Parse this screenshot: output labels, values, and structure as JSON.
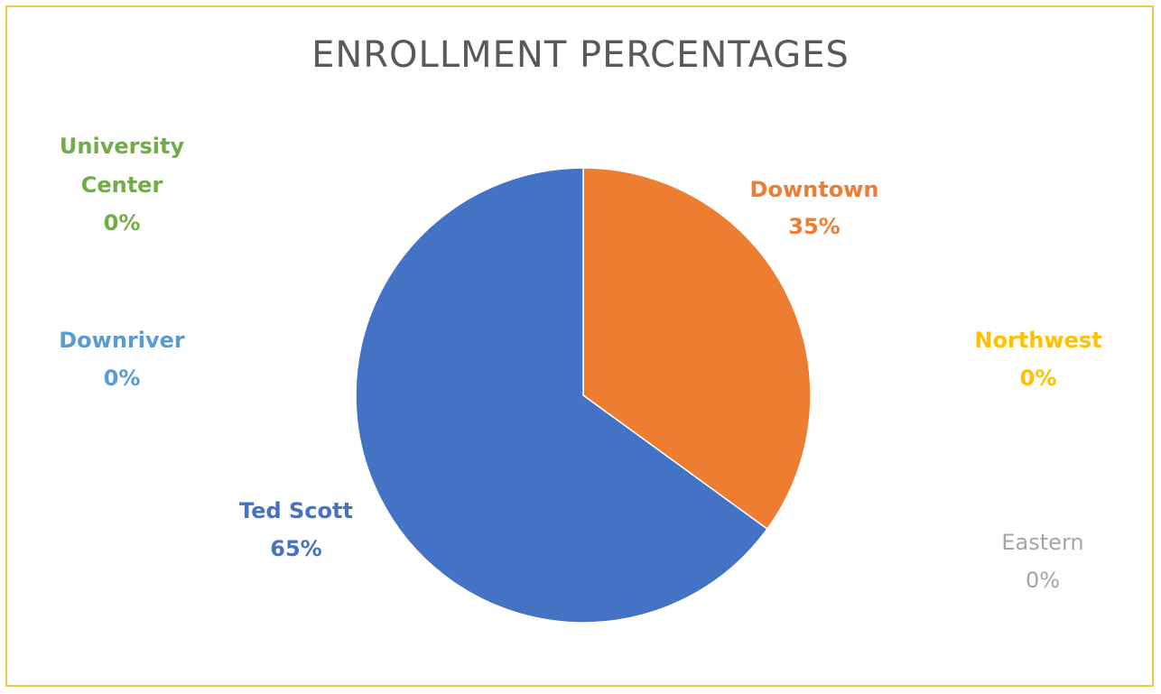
{
  "chart_data": {
    "type": "pie",
    "title": "ENROLLMENT PERCENTAGES",
    "slices": [
      {
        "name": "Downtown",
        "value": 35,
        "percent_label": "35%",
        "color": "#ed7d31"
      },
      {
        "name": "Northwest",
        "value": 0,
        "percent_label": "0%",
        "color": "#ffc000"
      },
      {
        "name": "Eastern",
        "value": 0,
        "percent_label": "0%",
        "color": "#a5a5a5"
      },
      {
        "name": "Ted Scott",
        "value": 65,
        "percent_label": "65%",
        "color": "#4472c4"
      },
      {
        "name": "Downriver",
        "value": 0,
        "percent_label": "0%",
        "color": "#5b9bd5"
      },
      {
        "name": "University Center",
        "value": 0,
        "percent_label": "0%",
        "color": "#70ad47"
      }
    ],
    "legend": "none",
    "data_labels": "outside"
  },
  "frame": {
    "border_color": "#f2c84b"
  }
}
